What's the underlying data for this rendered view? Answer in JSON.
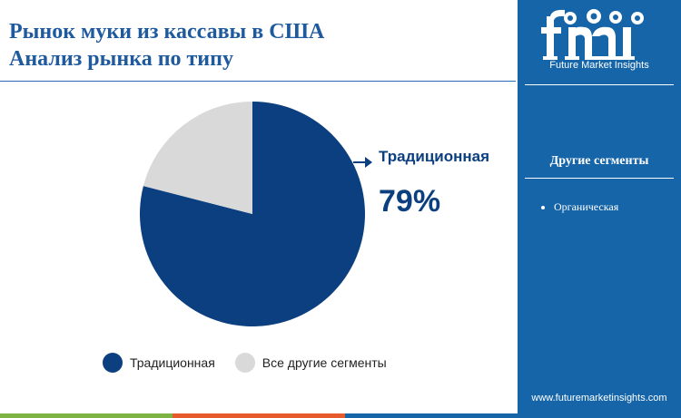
{
  "title": {
    "line1": "Рынок муки из кассавы в США",
    "line2": "Анализ рынка по типу"
  },
  "chart_data": {
    "type": "pie",
    "slices": [
      {
        "label": "Традиционная",
        "value": 79,
        "color": "#0b3f7f"
      },
      {
        "label": "Все другие сегменты",
        "value": 21,
        "color": "#d9d9d9"
      }
    ],
    "callout": {
      "label": "Традиционная",
      "value_text": "79%"
    },
    "legend": {
      "position": "bottom",
      "items": [
        "Традиционная",
        "Все другие сегменты"
      ]
    }
  },
  "sidebar": {
    "logo_letters": "fmi",
    "logo_caption": "Future Market Insights",
    "other_heading": "Другие сегменты",
    "segments": [
      "Органическая"
    ],
    "website": "www.futuremarketinsights.com",
    "bg_color": "#1565a8"
  },
  "bottom_bar_colors": [
    "#7cb342",
    "#e65a2b",
    "#1565a8"
  ]
}
